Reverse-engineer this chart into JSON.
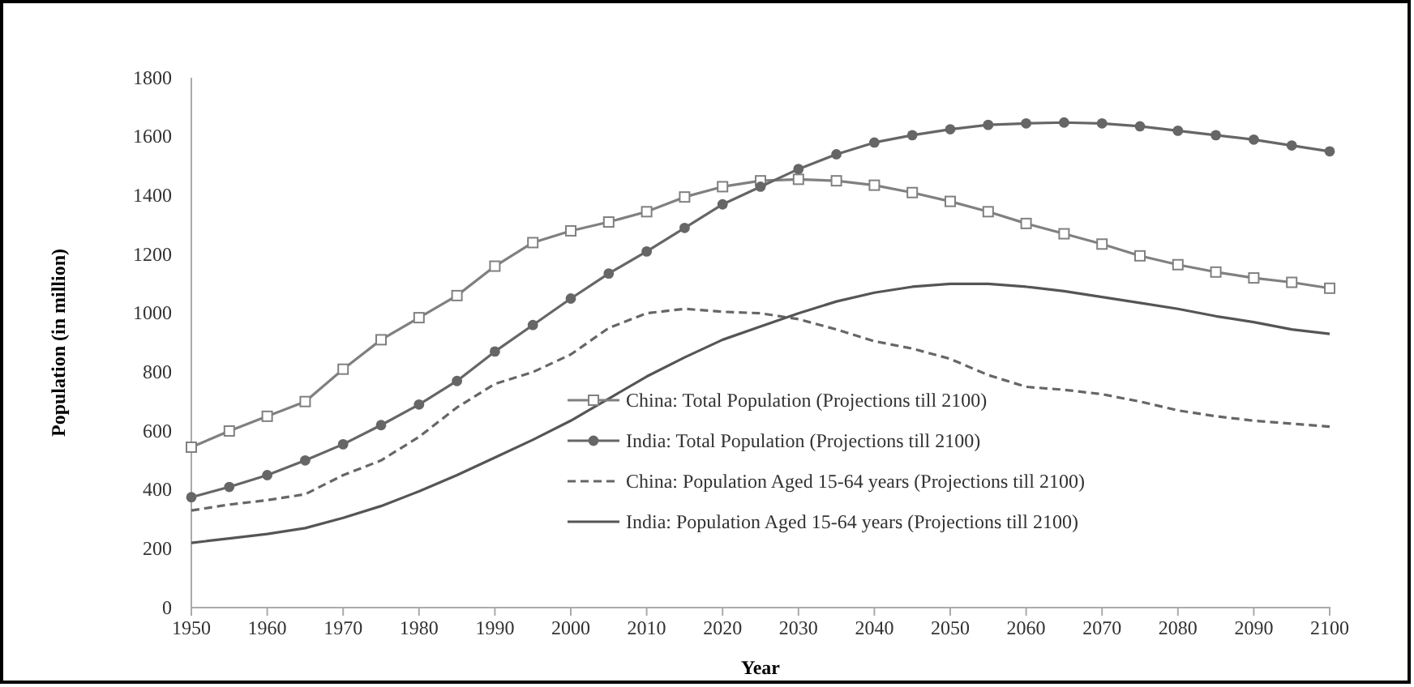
{
  "chart_data": {
    "type": "line",
    "xlabel": "Year",
    "ylabel": "Population (in million)",
    "x": [
      1950,
      1955,
      1960,
      1965,
      1970,
      1975,
      1980,
      1985,
      1990,
      1995,
      2000,
      2005,
      2010,
      2015,
      2020,
      2025,
      2030,
      2035,
      2040,
      2045,
      2050,
      2055,
      2060,
      2065,
      2070,
      2075,
      2080,
      2085,
      2090,
      2095,
      2100
    ],
    "xlim": [
      1950,
      2100
    ],
    "xticks": [
      1950,
      1960,
      1970,
      1980,
      1990,
      2000,
      2010,
      2020,
      2030,
      2040,
      2050,
      2060,
      2070,
      2080,
      2090,
      2100
    ],
    "ylim": [
      0,
      1800
    ],
    "yticks": [
      0,
      200,
      400,
      600,
      800,
      1000,
      1200,
      1400,
      1600,
      1800
    ],
    "grid": false,
    "legend": "bottom right",
    "series": [
      {
        "name": "China: Total Population (Projections till 2100)",
        "color": "#808080",
        "marker": "square",
        "line_style": "solid",
        "values": [
          545,
          600,
          650,
          700,
          810,
          910,
          985,
          1060,
          1160,
          1240,
          1280,
          1310,
          1345,
          1395,
          1430,
          1450,
          1455,
          1450,
          1435,
          1410,
          1380,
          1345,
          1305,
          1270,
          1235,
          1195,
          1165,
          1140,
          1120,
          1105,
          1085
        ]
      },
      {
        "name": "India: Total Population (Projections till 2100)",
        "color": "#666666",
        "marker": "circle",
        "line_style": "solid",
        "values": [
          375,
          410,
          450,
          500,
          555,
          620,
          690,
          770,
          870,
          960,
          1050,
          1135,
          1210,
          1290,
          1370,
          1430,
          1490,
          1540,
          1580,
          1605,
          1625,
          1640,
          1645,
          1648,
          1645,
          1635,
          1620,
          1605,
          1590,
          1570,
          1550
        ]
      },
      {
        "name": "China: Population Aged 15-64 years (Projections till 2100)",
        "color": "#666666",
        "marker": "none",
        "line_style": "dashed",
        "values": [
          330,
          350,
          365,
          385,
          450,
          500,
          580,
          680,
          760,
          800,
          860,
          950,
          1000,
          1015,
          1005,
          1000,
          980,
          945,
          905,
          880,
          845,
          790,
          750,
          740,
          725,
          700,
          670,
          650,
          635,
          625,
          615
        ]
      },
      {
        "name": "India: Population Aged 15-64 years (Projections till 2100)",
        "color": "#555555",
        "marker": "none",
        "line_style": "solid",
        "values": [
          220,
          235,
          250,
          270,
          305,
          345,
          395,
          450,
          510,
          570,
          635,
          710,
          785,
          850,
          910,
          955,
          1000,
          1040,
          1070,
          1090,
          1100,
          1100,
          1090,
          1075,
          1055,
          1035,
          1015,
          990,
          970,
          945,
          930
        ]
      }
    ]
  }
}
